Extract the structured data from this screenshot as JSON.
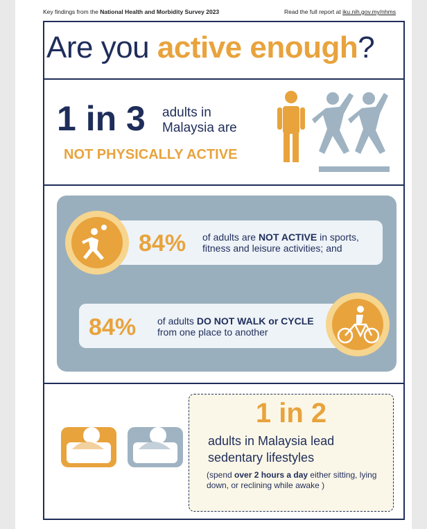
{
  "header": {
    "left": [
      "Key findings from the ",
      "National Health and Morbidity Survey 2023"
    ],
    "right": [
      "Read the full report at ",
      "iku.nih.gov.my/nhms"
    ]
  },
  "title": [
    "Are you ",
    "active enough",
    "?"
  ],
  "section1": {
    "ratio": "1 in 3",
    "text": "adults in Malaysia are",
    "highlight": "NOT PHYSICALLY ACTIVE"
  },
  "section2": {
    "items": [
      {
        "value": "84%",
        "text": [
          "of adults are ",
          "NOT ACTIVE",
          " in sports, fitness and leisure activities; and"
        ]
      },
      {
        "value": "84%",
        "text": [
          "of adults ",
          "DO NOT WALK or CYCLE",
          " from one place to another"
        ]
      }
    ]
  },
  "section3": {
    "ratio": "1 in 2",
    "text": "adults in Malaysia lead sedentary lifestyles",
    "note": [
      "(spend ",
      "over 2 hours a day",
      " either sitting, lying down, or reclining while awake )"
    ]
  }
}
